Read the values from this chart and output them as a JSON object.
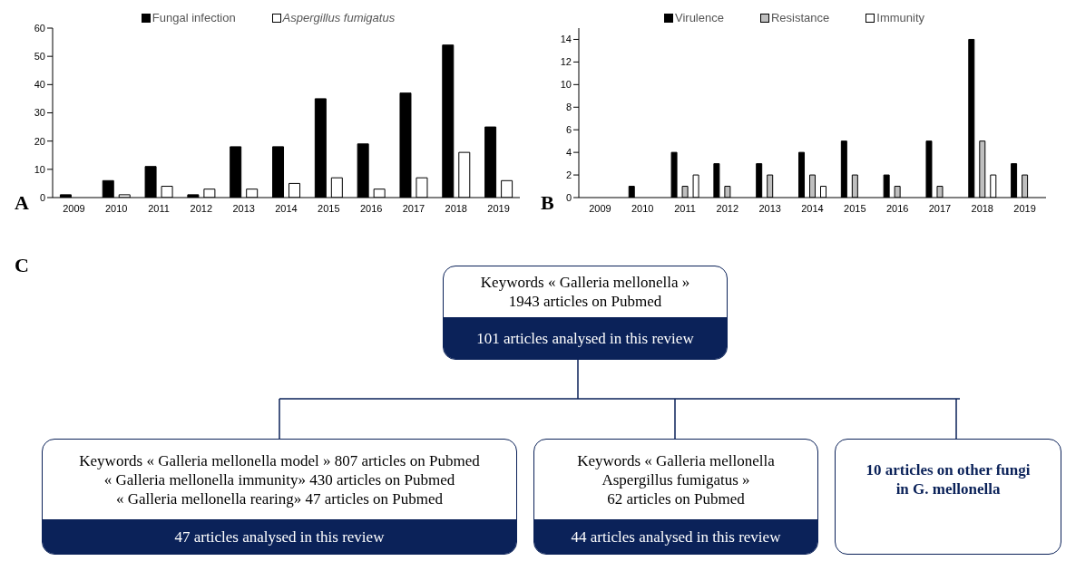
{
  "chart_data": [
    {
      "type": "bar",
      "title": "A",
      "categories": [
        "2009",
        "2010",
        "2011",
        "2012",
        "2013",
        "2014",
        "2015",
        "2016",
        "2017",
        "2018",
        "2019"
      ],
      "series": [
        {
          "name": "Fungal infection",
          "color": "#000000",
          "values": [
            1,
            6,
            11,
            1,
            18,
            18,
            35,
            19,
            37,
            54,
            25
          ]
        },
        {
          "name": "Aspergillus fumigatus",
          "color": "#ffffff",
          "values": [
            0,
            1,
            4,
            3,
            3,
            5,
            7,
            3,
            7,
            16,
            6
          ]
        }
      ],
      "ylim": [
        0,
        60
      ],
      "yticks": [
        0,
        10,
        20,
        30,
        40,
        50,
        60
      ],
      "legend": "top"
    },
    {
      "type": "bar",
      "title": "B",
      "categories": [
        "2009",
        "2010",
        "2011",
        "2012",
        "2013",
        "2014",
        "2015",
        "2016",
        "2017",
        "2018",
        "2019"
      ],
      "series": [
        {
          "name": "Virulence",
          "color": "#000000",
          "values": [
            0,
            1,
            4,
            3,
            3,
            4,
            5,
            2,
            5,
            14,
            3
          ]
        },
        {
          "name": "Resistance",
          "color": "#bfbfbf",
          "values": [
            0,
            0,
            1,
            1,
            2,
            2,
            2,
            1,
            1,
            5,
            2
          ]
        },
        {
          "name": "Immunity",
          "color": "#ffffff",
          "values": [
            0,
            0,
            2,
            0,
            0,
            1,
            0,
            0,
            0,
            2,
            0
          ]
        }
      ],
      "ylim": [
        0,
        15
      ],
      "yticks": [
        0,
        2,
        4,
        6,
        8,
        10,
        12,
        14
      ],
      "legend": "top"
    },
    {
      "type": "other",
      "title": "C",
      "annotations": [
        "Keywords « Galleria mellonella »",
        "1943 articles on Pubmed",
        "101 articles analysed in this review",
        "Keywords « Galleria mellonella model » 807 articles on Pubmed",
        "« Galleria mellonella immunity» 430 articles on Pubmed",
        "« Galleria mellonella rearing» 47 articles on Pubmed",
        "47 articles analysed in this review",
        "Keywords « Galleria mellonella",
        "Aspergillus fumigatus »",
        "62 articles on Pubmed",
        "44 articles analysed in this review",
        "10 articles on other fungi",
        "in G. mellonella"
      ]
    }
  ]
}
